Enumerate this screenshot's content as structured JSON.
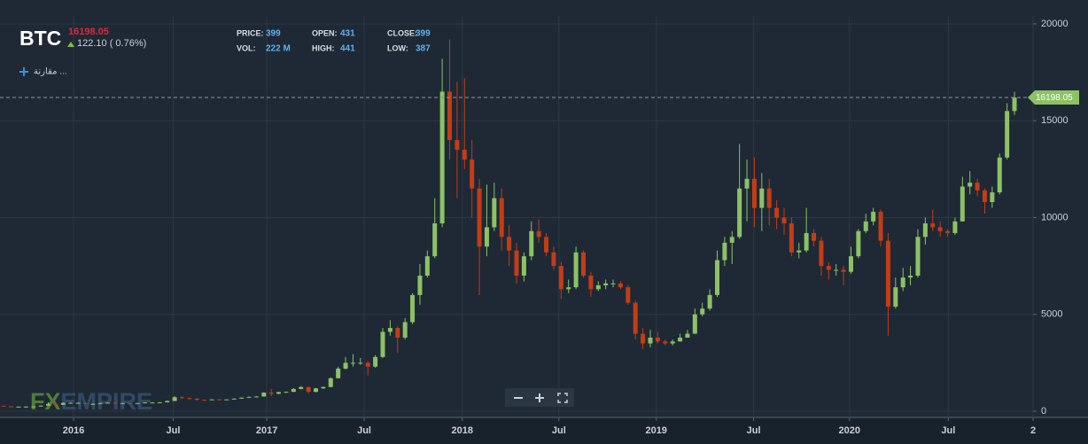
{
  "header": {
    "ticker": "BTC",
    "change": "122.10 ( 0.76%)",
    "stats": [
      {
        "label": "PRICE:",
        "value": "399"
      },
      {
        "label": "OPEN:",
        "value": "431"
      },
      {
        "label": "CLOSE:",
        "value": "399"
      },
      {
        "label": "VOL:",
        "value": "222 M"
      },
      {
        "label": "HIGH:",
        "value": "441"
      },
      {
        "label": "LOW:",
        "value": "387"
      }
    ],
    "compare": "مقارنة ...",
    "watermark_a": "FX",
    "watermark_b": "EMPIRE"
  },
  "chart_data": {
    "type": "candlestick",
    "last_price": 16198.05,
    "up_color": "#8cc265",
    "down_color": "#c43c16",
    "grid": true,
    "xlim": [
      0,
      139
    ],
    "xticks": [
      {
        "value": 9.9,
        "label": "2016"
      },
      {
        "value": 23.3,
        "label": "Jul"
      },
      {
        "value": 35.9,
        "label": "2017"
      },
      {
        "value": 49,
        "label": "Jul"
      },
      {
        "value": 62.2,
        "label": "2018"
      },
      {
        "value": 75.2,
        "label": "Jul"
      },
      {
        "value": 88.3,
        "label": "2019"
      },
      {
        "value": 101.4,
        "label": "Jul"
      },
      {
        "value": 114.3,
        "label": "2020"
      },
      {
        "value": 127.6,
        "label": "Jul"
      },
      {
        "value": 139,
        "label": "2"
      }
    ],
    "ylim": [
      -320,
      20410
    ],
    "yticks": [
      0,
      5000,
      10000,
      15000,
      20000
    ],
    "open": [
      280,
      250,
      230,
      235,
      240,
      245,
      290,
      380,
      330,
      430,
      430,
      430,
      380,
      380,
      420,
      440,
      415,
      420,
      410,
      420,
      450,
      450,
      460,
      530,
      720,
      680,
      650,
      590,
      580,
      610,
      600,
      610,
      650,
      700,
      740,
      760,
      960,
      900,
      990,
      1000,
      1150,
      1250,
      1000,
      1180,
      1250,
      1700,
      2200,
      2500,
      2500,
      2500,
      2300,
      2800,
      4100,
      4300,
      3800,
      4600,
      6000,
      7000,
      8000,
      9700,
      16500,
      14000,
      13500,
      13000,
      11500,
      8500,
      9500,
      11000,
      9000,
      8300,
      7000,
      8000,
      9300,
      9000,
      8200,
      7500,
      6300,
      6400,
      8200,
      7000,
      6300,
      6500,
      6600,
      6600,
      6400,
      5600,
      4000,
      3500,
      3800,
      3600,
      3500,
      3600,
      3800,
      4000,
      5000,
      5300,
      6000,
      7800,
      8700,
      9000,
      11500,
      12000,
      10500,
      11500,
      10500,
      10000,
      9700,
      8200,
      8300,
      9200,
      8800,
      7500,
      7300,
      7300,
      7200,
      8000,
      9300,
      9800,
      10300,
      8800,
      5400,
      6400,
      6900,
      7000,
      9000,
      9700,
      9500,
      9300,
      9200,
      9800,
      11600,
      11800,
      11400,
      10800,
      11300,
      13100,
      15500
    ],
    "high": [
      290,
      260,
      245,
      250,
      255,
      300,
      460,
      400,
      460,
      470,
      460,
      440,
      410,
      440,
      455,
      450,
      430,
      430,
      430,
      460,
      470,
      470,
      550,
      780,
      760,
      700,
      670,
      600,
      620,
      630,
      620,
      660,
      710,
      750,
      780,
      980,
      1150,
      1010,
      1020,
      1190,
      1290,
      1260,
      1200,
      1280,
      1750,
      2300,
      2800,
      2950,
      2750,
      2600,
      2900,
      4300,
      4700,
      4400,
      4800,
      6100,
      7600,
      8300,
      11000,
      18200,
      19200,
      17000,
      17200,
      14000,
      12000,
      11700,
      11800,
      11500,
      9600,
      8700,
      8200,
      9800,
      9900,
      9200,
      8500,
      7700,
      6800,
      8500,
      8300,
      7200,
      6700,
      6800,
      6800,
      6700,
      6500,
      5700,
      4300,
      4200,
      4100,
      3700,
      3700,
      4000,
      4200,
      5300,
      5600,
      6300,
      8300,
      9000,
      9300,
      13800,
      13000,
      13100,
      12300,
      12000,
      10900,
      10500,
      10000,
      8700,
      10500,
      9400,
      9000,
      7700,
      7600,
      7500,
      8500,
      9400,
      10200,
      10500,
      10400,
      9200,
      6900,
      7400,
      7500,
      9400,
      10000,
      10400,
      9800,
      9400,
      10000,
      12100,
      12400,
      12000,
      11500,
      11600,
      13300,
      15900,
      16500
    ],
    "low": [
      240,
      220,
      225,
      228,
      235,
      240,
      285,
      310,
      320,
      410,
      410,
      360,
      360,
      370,
      410,
      405,
      405,
      400,
      405,
      415,
      440,
      440,
      455,
      520,
      640,
      600,
      540,
      560,
      570,
      590,
      590,
      600,
      640,
      690,
      720,
      750,
      780,
      880,
      950,
      990,
      1130,
      900,
      970,
      1150,
      1240,
      1690,
      2150,
      2300,
      2400,
      1850,
      2250,
      2750,
      3900,
      3000,
      3700,
      4500,
      5500,
      6900,
      7900,
      9500,
      13000,
      11000,
      12500,
      10000,
      6000,
      8000,
      9300,
      8300,
      7500,
      6600,
      6700,
      7800,
      8700,
      8000,
      7300,
      5800,
      6100,
      6300,
      6900,
      5900,
      6200,
      6300,
      6400,
      6300,
      5500,
      3700,
      3200,
      3300,
      3500,
      3400,
      3400,
      3600,
      3800,
      4000,
      4900,
      5200,
      5900,
      7500,
      7600,
      8900,
      9800,
      9500,
      9300,
      9600,
      9400,
      9100,
      8000,
      7900,
      8200,
      8500,
      7000,
      6800,
      7000,
      6500,
      7100,
      7900,
      9200,
      9600,
      8500,
      3900,
      5300,
      6200,
      6500,
      6900,
      8600,
      9300,
      9000,
      9000,
      9100,
      9800,
      11200,
      11100,
      10200,
      10500,
      11200,
      13000,
      15300
    ],
    "close": [
      250,
      230,
      235,
      240,
      245,
      290,
      380,
      330,
      430,
      430,
      430,
      380,
      380,
      420,
      440,
      415,
      420,
      410,
      420,
      450,
      450,
      460,
      530,
      720,
      680,
      650,
      590,
      580,
      610,
      600,
      610,
      650,
      700,
      740,
      760,
      960,
      900,
      990,
      1000,
      1150,
      1250,
      1000,
      1180,
      1250,
      1700,
      2200,
      2500,
      2500,
      2500,
      2300,
      2800,
      4100,
      4300,
      3800,
      4600,
      6000,
      7000,
      8000,
      9700,
      16500,
      14000,
      13500,
      13000,
      11500,
      8500,
      9500,
      11000,
      9000,
      8300,
      7000,
      8000,
      9300,
      9000,
      8200,
      7500,
      6300,
      6400,
      8200,
      7000,
      6300,
      6500,
      6600,
      6600,
      6400,
      5600,
      4000,
      3500,
      3800,
      3600,
      3500,
      3600,
      3800,
      4000,
      5000,
      5300,
      6000,
      7800,
      8700,
      9000,
      11500,
      12000,
      10500,
      11500,
      10500,
      10000,
      9700,
      8200,
      8300,
      9200,
      8800,
      7500,
      7300,
      7300,
      7200,
      8000,
      9300,
      9800,
      10300,
      8800,
      5400,
      6400,
      6900,
      7000,
      9000,
      9700,
      9500,
      9300,
      9200,
      9800,
      11600,
      11800,
      11400,
      10800,
      11300,
      13100,
      15500,
      16198.05
    ]
  }
}
